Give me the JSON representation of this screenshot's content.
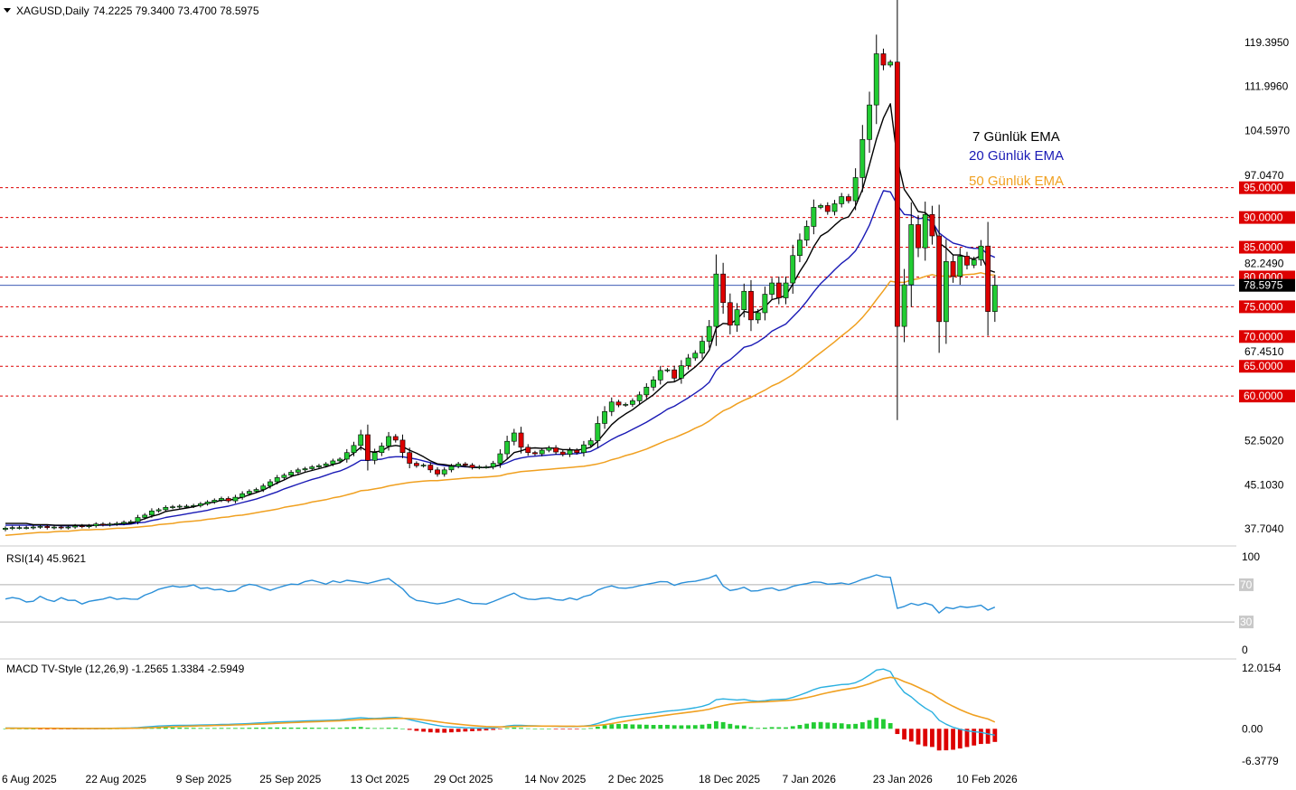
{
  "header": {
    "title": "XAGUSD,Daily",
    "ohlc": "74.2225 79.3400 73.4700 78.5975"
  },
  "legend": {
    "ema7": "7 Günlük EMA",
    "ema20": "20 Günlük EMA",
    "ema50": "50 Günlük EMA"
  },
  "colors": {
    "bull": "#22cc33",
    "bear": "#dd0000",
    "ema7": "#000000",
    "ema20": "#1a1ab5",
    "ema50": "#f0a020",
    "level": "#dd0000",
    "current": "#2244aa",
    "rsi": "#2a8fd8",
    "macd_line": "#2ab0e0",
    "signal_line": "#f0a020"
  },
  "chart_data": [
    {
      "type": "candlestick",
      "symbol": "XAGUSD",
      "timeframe": "Daily",
      "y_ticks": [
        "119.3950",
        "111.9960",
        "104.5970",
        "97.0470",
        "82.2490",
        "67.4510",
        "52.5020",
        "45.1030",
        "37.7040"
      ],
      "ylim": [
        34.0,
        122.0
      ],
      "levels": [
        {
          "value": 95,
          "label": "95.0000"
        },
        {
          "value": 90,
          "label": "90.0000"
        },
        {
          "value": 85,
          "label": "85.0000"
        },
        {
          "value": 80,
          "label": "80.0000"
        },
        {
          "value": 75,
          "label": "75.0000"
        },
        {
          "value": 70,
          "label": "70.0000"
        },
        {
          "value": 65,
          "label": "65.0000"
        },
        {
          "value": 60,
          "label": "60.0000"
        }
      ],
      "current_price": {
        "value": 78.5975,
        "label": "78.5975"
      },
      "x_labels": [
        "6 Aug 2025",
        "22 Aug 2025",
        "9 Sep 2025",
        "25 Sep 2025",
        "13 Oct 2025",
        "29 Oct 2025",
        "14 Nov 2025",
        "2 Dec 2025",
        "18 Dec 2025",
        "7 Jan 2026",
        "23 Jan 2026",
        "10 Feb 2026"
      ],
      "x_label_bar_index": [
        0,
        12,
        25,
        37,
        50,
        62,
        75,
        87,
        100,
        112,
        125,
        137
      ],
      "closes": [
        37.8,
        37.9,
        37.9,
        37.9,
        38.0,
        38.1,
        37.9,
        38.0,
        37.9,
        38.0,
        38.2,
        38.1,
        38.2,
        38.5,
        38.4,
        38.5,
        38.6,
        38.8,
        38.9,
        39.6,
        40.0,
        40.7,
        40.9,
        41.3,
        41.4,
        41.5,
        41.5,
        41.6,
        41.9,
        42.2,
        42.5,
        42.8,
        42.4,
        43.0,
        43.6,
        44.0,
        44.3,
        44.9,
        45.6,
        46.3,
        46.7,
        47.2,
        47.6,
        47.8,
        48.1,
        48.3,
        48.6,
        49.1,
        49.4,
        50.5,
        51.7,
        53.5,
        49.2,
        50.5,
        51.6,
        53.2,
        52.6,
        50.5,
        48.7,
        48.3,
        48.4,
        47.6,
        46.9,
        47.6,
        48.2,
        48.6,
        48.4,
        48.0,
        48.1,
        48.1,
        48.7,
        50.3,
        52.4,
        53.8,
        51.4,
        50.5,
        50.3,
        50.9,
        51.3,
        50.6,
        50.2,
        50.9,
        50.5,
        51.8,
        52.5,
        55.4,
        57.4,
        59.0,
        58.5,
        58.6,
        59.2,
        60.2,
        61.5,
        62.7,
        64.3,
        64.4,
        63.0,
        65.1,
        66.4,
        67.2,
        69.2,
        71.7,
        80.5,
        75.7,
        71.9,
        74.5,
        77.6,
        72.8,
        74.0,
        77.1,
        79.0,
        76.5,
        79.0,
        83.6,
        86.2,
        88.5,
        91.7,
        92.0,
        91.0,
        92.3,
        93.5,
        92.8,
        96.7,
        103.1,
        108.9,
        117.5,
        115.6,
        116.1,
        71.7,
        78.7,
        88.8,
        84.9,
        90.5,
        86.9,
        72.5,
        82.6,
        80.1,
        83.5,
        82.0,
        82.9,
        85.2,
        74.2,
        78.6
      ],
      "ema7": [
        38.6,
        38.6,
        38.6,
        38.6,
        38.4,
        38.4,
        38.4,
        38.3,
        38.3,
        38.3,
        38.3,
        38.3,
        38.3,
        38.3,
        38.4,
        38.4,
        38.5,
        38.6,
        38.6,
        39.0,
        39.4,
        39.8,
        40.1,
        40.6,
        40.8,
        41.0,
        41.2,
        41.4,
        41.7,
        42.0,
        42.2,
        42.5,
        42.5,
        42.7,
        43.0,
        43.4,
        43.8,
        44.2,
        44.8,
        45.4,
        45.9,
        46.5,
        46.8,
        47.2,
        47.5,
        47.8,
        48.1,
        48.5,
        48.8,
        49.6,
        50.4,
        51.4,
        50.7,
        50.6,
        50.8,
        51.5,
        51.7,
        51.5,
        50.9,
        50.4,
        49.8,
        49.1,
        48.6,
        48.5,
        48.3,
        48.3,
        48.2,
        48.0,
        48.0,
        48.0,
        48.1,
        48.5,
        49.4,
        50.5,
        50.8,
        51.2,
        51.3,
        51.2,
        51.3,
        51.2,
        51.0,
        51.0,
        50.9,
        51.1,
        51.4,
        52.4,
        53.8,
        55.2,
        56.2,
        57.0,
        57.7,
        58.6,
        59.4,
        60.2,
        61.3,
        62.3,
        62.4,
        63.0,
        64.0,
        64.9,
        66.0,
        67.7,
        71.4,
        72.2,
        72.1,
        72.9,
        74.2,
        74.0,
        74.2,
        75.0,
        76.2,
        76.5,
        76.9,
        78.8,
        80.9,
        82.7,
        85.1,
        86.9,
        87.6,
        88.7,
        89.7,
        90.1,
        91.9,
        94.7,
        98.8,
        103.2,
        106.7,
        109.1,
        99.8,
        94.7,
        93.0,
        91.0,
        90.8,
        89.8,
        85.7,
        84.9,
        83.7,
        83.7,
        83.3,
        83.0,
        83.6,
        81.2,
        80.8
      ],
      "ema20": [
        38.3,
        38.3,
        38.3,
        38.3,
        38.3,
        38.3,
        38.3,
        38.3,
        38.2,
        38.2,
        38.2,
        38.2,
        38.2,
        38.3,
        38.3,
        38.3,
        38.4,
        38.4,
        38.5,
        38.7,
        38.8,
        39.1,
        39.3,
        39.6,
        39.8,
        40.0,
        40.2,
        40.4,
        40.6,
        40.8,
        41.1,
        41.3,
        41.5,
        41.8,
        42.1,
        42.4,
        42.7,
        43.1,
        43.5,
        43.9,
        44.4,
        44.8,
        45.2,
        45.6,
        46.0,
        46.3,
        46.7,
        47.1,
        47.4,
        47.9,
        48.5,
        49.2,
        49.2,
        49.3,
        49.4,
        49.7,
        49.8,
        49.8,
        49.6,
        49.4,
        49.1,
        48.8,
        48.5,
        48.3,
        48.2,
        48.2,
        48.1,
        48.1,
        48.0,
        48.0,
        48.1,
        48.4,
        48.8,
        49.3,
        49.6,
        49.8,
        49.9,
        50.0,
        50.1,
        50.2,
        50.2,
        50.3,
        50.3,
        50.5,
        50.7,
        51.3,
        52.0,
        52.7,
        53.3,
        53.8,
        54.4,
        55.0,
        55.6,
        56.3,
        57.0,
        57.8,
        58.3,
        59.0,
        59.7,
        60.5,
        61.3,
        62.3,
        64.3,
        65.4,
        66.1,
        67.1,
        68.2,
        68.5,
        69.1,
        69.9,
        70.9,
        71.5,
        72.1,
        73.3,
        74.5,
        75.9,
        77.5,
        78.9,
        80.0,
        81.2,
        82.3,
        83.2,
        84.4,
        86.4,
        88.7,
        91.8,
        94.5,
        94.3,
        92.1,
        90.5,
        90.4,
        89.8,
        89.9,
        89.3,
        87.4,
        86.5,
        85.7,
        85.4,
        85.0,
        84.8,
        84.8,
        83.8,
        83.3
      ],
      "ema50": [
        36.6,
        36.7,
        36.8,
        36.9,
        37.0,
        37.1,
        37.1,
        37.2,
        37.3,
        37.3,
        37.4,
        37.5,
        37.5,
        37.6,
        37.6,
        37.7,
        37.8,
        37.8,
        37.9,
        38.0,
        38.1,
        38.2,
        38.4,
        38.5,
        38.6,
        38.8,
        38.9,
        39.0,
        39.1,
        39.3,
        39.4,
        39.6,
        39.7,
        39.9,
        40.0,
        40.2,
        40.4,
        40.6,
        40.8,
        41.0,
        41.3,
        41.5,
        41.7,
        41.9,
        42.2,
        42.4,
        42.6,
        42.9,
        43.1,
        43.4,
        43.7,
        44.1,
        44.2,
        44.4,
        44.6,
        44.9,
        45.1,
        45.3,
        45.5,
        45.6,
        45.7,
        45.8,
        45.8,
        45.9,
        46.0,
        46.1,
        46.2,
        46.3,
        46.3,
        46.4,
        46.5,
        46.6,
        46.9,
        47.1,
        47.3,
        47.4,
        47.5,
        47.6,
        47.7,
        47.8,
        47.9,
        48.0,
        48.1,
        48.2,
        48.4,
        48.6,
        48.9,
        49.3,
        49.6,
        50.0,
        50.3,
        50.7,
        51.1,
        51.6,
        52.1,
        52.6,
        53.0,
        53.5,
        54.0,
        54.6,
        55.1,
        55.8,
        56.7,
        57.5,
        58.0,
        58.7,
        59.3,
        59.8,
        60.4,
        61.0,
        61.7,
        62.2,
        62.9,
        63.6,
        64.5,
        65.4,
        66.4,
        67.3,
        68.2,
        69.1,
        70.1,
        71.0,
        72.0,
        73.2,
        74.6,
        76.2,
        77.7,
        79.3,
        79.1,
        79.1,
        79.5,
        79.7,
        80.1,
        80.4,
        80.1,
        80.2,
        80.2,
        80.3,
        80.4,
        80.5,
        80.7,
        80.4,
        80.3
      ]
    },
    {
      "type": "line",
      "title": "RSI(14) 45.9621",
      "y_ticks": [
        "100",
        "70",
        "30",
        "0"
      ],
      "ylim": [
        0,
        100
      ],
      "levels": [
        70,
        30
      ],
      "values": [
        54.7,
        56.2,
        55.0,
        51.5,
        52.2,
        57.6,
        53.9,
        52.0,
        56.1,
        53.2,
        53.3,
        49.3,
        52.1,
        53.4,
        54.6,
        56.7,
        54.3,
        55.4,
        54.6,
        54.5,
        58.8,
        61.6,
        65.1,
        67.1,
        68.6,
        67.5,
        68.2,
        69.8,
        66.0,
        66.7,
        64.5,
        65.0,
        62.7,
        63.6,
        68.2,
        70.5,
        69.3,
        66.4,
        64.0,
        66.5,
        68.7,
        70.7,
        70.2,
        73.4,
        74.9,
        72.8,
        70.6,
        74.1,
        72.3,
        74.8,
        73.8,
        72.6,
        71.4,
        73.2,
        75.1,
        76.6,
        71.1,
        65.6,
        57.4,
        53.1,
        52.1,
        50.6,
        49.4,
        50.6,
        52.6,
        54.9,
        52.2,
        49.9,
        49.7,
        49.2,
        51.9,
        55.0,
        58.2,
        61.0,
        56.5,
        54.6,
        54.1,
        55.3,
        55.9,
        54.0,
        53.3,
        55.7,
        53.8,
        57.3,
        59.1,
        64.3,
        67.0,
        68.7,
        66.6,
        66.2,
        67.2,
        68.9,
        70.5,
        71.7,
        73.4,
        73.1,
        69.3,
        71.7,
        73.1,
        73.7,
        75.4,
        77.3,
        80.4,
        68.6,
        63.8,
        65.0,
        67.3,
        63.2,
        63.5,
        65.5,
        66.6,
        63.8,
        65.2,
        68.3,
        70.0,
        71.2,
        73.0,
        72.6,
        70.6,
        71.1,
        71.8,
        70.4,
        72.8,
        75.8,
        78.0,
        80.6,
        78.4,
        78.0,
        44.6,
        46.7,
        50.0,
        48.0,
        50.3,
        48.2,
        39.7,
        45.6,
        44.3,
        46.6,
        45.6,
        46.5,
        48.0,
        42.7,
        45.96
      ]
    },
    {
      "type": "line",
      "title": "MACD TV-Style (12,26,9) -1.2565 1.3384 -2.5949",
      "y_ticks": [
        "12.0154",
        "0.00",
        "-6.3779"
      ],
      "ylim": [
        -6.3779,
        12.0154
      ],
      "series": [
        {
          "values": [
            0.15,
            0.14,
            0.13,
            0.12,
            0.11,
            0.1,
            0.09,
            0.08,
            0.07,
            0.06,
            0.05,
            0.04,
            0.04,
            0.05,
            0.07,
            0.09,
            0.12,
            0.15,
            0.18,
            0.25,
            0.35,
            0.45,
            0.55,
            0.6,
            0.65,
            0.68,
            0.7,
            0.72,
            0.74,
            0.76,
            0.8,
            0.85,
            0.88,
            0.92,
            0.98,
            1.05,
            1.12,
            1.2,
            1.28,
            1.35,
            1.4,
            1.45,
            1.5,
            1.55,
            1.6,
            1.63,
            1.66,
            1.72,
            1.78,
            1.92,
            2.06,
            2.18,
            2.08,
            2.05,
            2.1,
            2.2,
            2.25,
            2.1,
            1.8,
            1.5,
            1.2,
            0.9,
            0.65,
            0.45,
            0.35,
            0.28,
            0.22,
            0.17,
            0.14,
            0.13,
            0.17,
            0.3,
            0.55,
            0.7,
            0.68,
            0.62,
            0.58,
            0.55,
            0.54,
            0.5,
            0.45,
            0.46,
            0.45,
            0.55,
            0.7,
            1.05,
            1.5,
            1.95,
            2.25,
            2.45,
            2.6,
            2.78,
            2.95,
            3.1,
            3.3,
            3.5,
            3.6,
            3.75,
            3.95,
            4.15,
            4.45,
            4.85,
            5.75,
            5.9,
            5.8,
            5.7,
            5.8,
            5.55,
            5.45,
            5.55,
            5.75,
            5.8,
            5.85,
            6.2,
            6.65,
            7.15,
            7.75,
            8.15,
            8.35,
            8.55,
            8.75,
            8.8,
            9.1,
            9.75,
            10.6,
            11.6,
            11.8,
            11.3,
            8.9,
            7.2,
            6.3,
            5.1,
            4.1,
            3.3,
            1.7,
            0.9,
            0.3,
            -0.1,
            -0.4,
            -0.6,
            -0.7,
            -1.0,
            -1.2565
          ]
        },
        {
          "values": [
            0.1,
            0.11,
            0.11,
            0.11,
            0.11,
            0.11,
            0.1,
            0.1,
            0.09,
            0.09,
            0.08,
            0.07,
            0.07,
            0.06,
            0.06,
            0.07,
            0.08,
            0.09,
            0.1,
            0.13,
            0.17,
            0.23,
            0.29,
            0.35,
            0.41,
            0.46,
            0.5,
            0.54,
            0.58,
            0.61,
            0.65,
            0.68,
            0.72,
            0.76,
            0.8,
            0.85,
            0.9,
            0.96,
            1.02,
            1.09,
            1.15,
            1.21,
            1.27,
            1.33,
            1.38,
            1.43,
            1.48,
            1.53,
            1.58,
            1.65,
            1.73,
            1.82,
            1.87,
            1.91,
            1.95,
            2.0,
            2.05,
            2.06,
            2.01,
            1.91,
            1.77,
            1.6,
            1.41,
            1.22,
            1.05,
            0.9,
            0.76,
            0.64,
            0.54,
            0.45,
            0.4,
            0.37,
            0.4,
            0.46,
            0.5,
            0.53,
            0.54,
            0.54,
            0.54,
            0.53,
            0.52,
            0.51,
            0.5,
            0.51,
            0.55,
            0.65,
            0.82,
            1.04,
            1.29,
            1.52,
            1.74,
            1.94,
            2.15,
            2.34,
            2.53,
            2.72,
            2.9,
            3.07,
            3.25,
            3.43,
            3.63,
            3.88,
            4.25,
            4.58,
            4.83,
            5.01,
            5.16,
            5.24,
            5.28,
            5.33,
            5.42,
            5.49,
            5.56,
            5.69,
            5.89,
            6.14,
            6.47,
            6.81,
            7.12,
            7.4,
            7.67,
            7.89,
            8.13,
            8.46,
            8.89,
            9.43,
            9.9,
            10.18,
            9.93,
            9.32,
            8.81,
            8.2,
            7.54,
            6.89,
            5.98,
            5.15,
            4.44,
            3.79,
            3.2,
            2.7,
            2.3,
            1.95,
            1.3384
          ]
        }
      ],
      "histogram": [
        0.05,
        0.03,
        0.02,
        0.01,
        0.0,
        -0.01,
        -0.01,
        -0.02,
        -0.02,
        -0.03,
        -0.03,
        -0.03,
        -0.03,
        -0.01,
        0.01,
        0.02,
        0.04,
        0.06,
        0.08,
        0.12,
        0.18,
        0.22,
        0.26,
        0.25,
        0.24,
        0.22,
        0.2,
        0.18,
        0.16,
        0.15,
        0.15,
        0.17,
        0.16,
        0.16,
        0.18,
        0.2,
        0.22,
        0.24,
        0.26,
        0.26,
        0.25,
        0.24,
        0.23,
        0.22,
        0.22,
        0.2,
        0.18,
        0.19,
        0.2,
        0.27,
        0.33,
        0.36,
        0.21,
        0.14,
        0.15,
        0.2,
        0.2,
        0.04,
        -0.21,
        -0.41,
        -0.57,
        -0.7,
        -0.76,
        -0.77,
        -0.7,
        -0.62,
        -0.54,
        -0.47,
        -0.4,
        -0.32,
        -0.23,
        -0.07,
        0.15,
        0.24,
        0.18,
        0.09,
        0.04,
        0.01,
        0.0,
        -0.03,
        -0.07,
        -0.05,
        -0.05,
        0.04,
        0.15,
        0.4,
        0.68,
        0.91,
        0.96,
        0.93,
        0.86,
        0.84,
        0.8,
        0.76,
        0.77,
        0.78,
        0.7,
        0.68,
        0.7,
        0.72,
        0.82,
        0.97,
        1.5,
        1.32,
        0.97,
        0.69,
        0.64,
        0.31,
        0.17,
        0.22,
        0.33,
        0.31,
        0.29,
        0.51,
        0.76,
        1.01,
        1.28,
        1.34,
        1.23,
        1.15,
        1.08,
        0.91,
        0.97,
        1.29,
        1.71,
        2.17,
        1.9,
        1.12,
        -1.03,
        -2.12,
        -2.51,
        -3.1,
        -3.44,
        -3.59,
        -4.28,
        -4.25,
        -4.14,
        -3.89,
        -3.6,
        -3.3,
        -3.0,
        -2.95,
        -2.5949
      ]
    }
  ]
}
